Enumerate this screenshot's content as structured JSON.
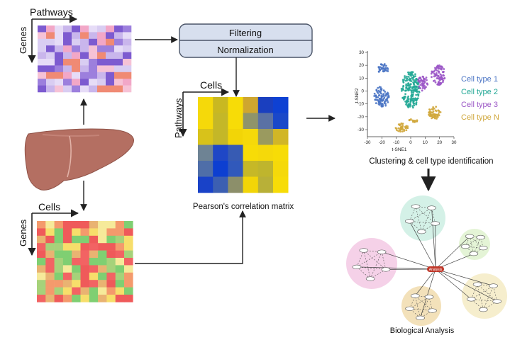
{
  "labels": {
    "pathways_top": "Pathways",
    "genes_top": "Genes",
    "filtering": "Filtering",
    "normalization": "Normalization",
    "cells_mid": "Cells",
    "pathways_mid": "Pathways",
    "pearson": "Pearson's correlation matrix",
    "cells_bottom": "Cells",
    "genes_bottom": "Genes",
    "clustering": "Clustering & cell type identification",
    "biological": "Biological Analysis",
    "tsne_x": "t-SNE1",
    "tsne_y": "t-SNE2",
    "center_node": "Analysis"
  },
  "tsne": {
    "x_ticks": [
      "-30",
      "-20",
      "-10",
      "0",
      "10",
      "20",
      "30"
    ],
    "y_ticks": [
      "30",
      "20",
      "10",
      "0",
      "-10",
      "-20",
      "-30"
    ],
    "legend": [
      {
        "label": "Cell type 1",
        "color": "#4a74c4"
      },
      {
        "label": "Cell type 2",
        "color": "#23a896"
      },
      {
        "label": "Cell type 3",
        "color": "#9b57c6"
      },
      {
        "label": "Cell type N",
        "color": "#d0a73b"
      }
    ]
  },
  "colors": {
    "box_fill": "#d7dfee",
    "box_stroke": "#4b5568",
    "arrow": "#222222",
    "liver": "#b46f62",
    "center_node": "#c0392b",
    "cluster_pink": "#f3c9e4",
    "cluster_mint": "#cdeee3",
    "cluster_green": "#dff2cf",
    "cluster_tan": "#f1dcae",
    "cluster_cream": "#f4ebc4"
  }
}
